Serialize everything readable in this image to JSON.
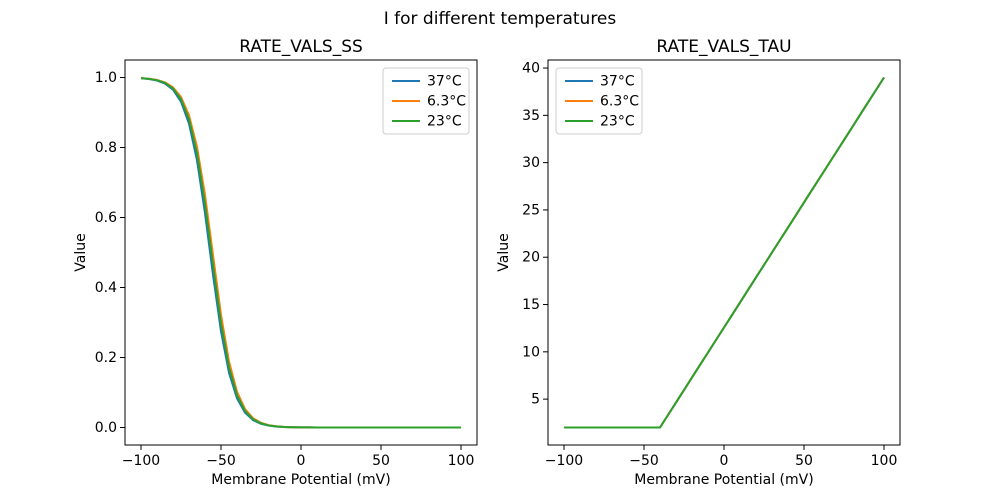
{
  "figure": {
    "suptitle": "I for different temperatures",
    "background": "#ffffff"
  },
  "legend_entries": [
    {
      "label": "37°C",
      "color": "#1f77b4"
    },
    {
      "label": "6.3°C",
      "color": "#ff7f0e"
    },
    {
      "label": "23°C",
      "color": "#2ca02c"
    }
  ],
  "chart_data": [
    {
      "type": "line",
      "title": "RATE_VALS_SS",
      "xlabel": "Membrane Potential (mV)",
      "ylabel": "Value",
      "xlim": [
        -110,
        110
      ],
      "ylim": [
        -0.05,
        1.05
      ],
      "grid": false,
      "legend_position": "upper-right",
      "xticks": [
        -100,
        -50,
        0,
        50,
        100
      ],
      "xtick_labels": [
        "−100",
        "−50",
        "0",
        "50",
        "100"
      ],
      "yticks": [
        0.0,
        0.2,
        0.4,
        0.6,
        0.8,
        1.0
      ],
      "ytick_labels": [
        "0.0",
        "0.2",
        "0.4",
        "0.6",
        "0.8",
        "1.0"
      ],
      "x": [
        -100,
        -95,
        -90,
        -85,
        -80,
        -75,
        -70,
        -65,
        -60,
        -55,
        -50,
        -45,
        -40,
        -35,
        -30,
        -25,
        -20,
        -15,
        -10,
        -5,
        0,
        5,
        10,
        15,
        20,
        25,
        30,
        35,
        40,
        45,
        50,
        55,
        60,
        65,
        70,
        75,
        80,
        85,
        90,
        95,
        100
      ],
      "series": [
        {
          "name": "37°C",
          "color": "#1f77b4",
          "values": [
            0.9979,
            0.9957,
            0.9914,
            0.9825,
            0.965,
            0.9309,
            0.8683,
            0.7634,
            0.6123,
            0.4361,
            0.2748,
            0.1563,
            0.0832,
            0.0425,
            0.0213,
            0.0105,
            0.0052,
            0.0025,
            0.0012,
            0.0006,
            0.0003,
            0.0002,
            0.0001,
            0,
            0,
            0,
            0,
            0,
            0,
            0,
            0,
            0,
            0,
            0,
            0,
            0,
            0,
            0,
            0,
            0,
            0
          ]
        },
        {
          "name": "6.3°C",
          "color": "#ff7f0e",
          "values": [
            0.9983,
            0.9966,
            0.9931,
            0.986,
            0.9719,
            0.9442,
            0.8923,
            0.8022,
            0.665,
            0.4929,
            0.3224,
            0.1889,
            0.1024,
            0.0529,
            0.0266,
            0.0132,
            0.0065,
            0.0032,
            0.0016,
            0.0008,
            0.0004,
            0.0002,
            0.0001,
            0,
            0,
            0,
            0,
            0,
            0,
            0,
            0,
            0,
            0,
            0,
            0,
            0,
            0,
            0,
            0,
            0,
            0
          ]
        },
        {
          "name": "23°C",
          "color": "#2ca02c",
          "values": [
            0.9981,
            0.9962,
            0.9923,
            0.9844,
            0.9687,
            0.9378,
            0.8808,
            0.7834,
            0.6391,
            0.4644,
            0.298,
            0.1721,
            0.0923,
            0.0474,
            0.0238,
            0.0118,
            0.0058,
            0.0028,
            0.0014,
            0.0007,
            0.0003,
            0.0002,
            0.0001,
            0,
            0,
            0,
            0,
            0,
            0,
            0,
            0,
            0,
            0,
            0,
            0,
            0,
            0,
            0,
            0,
            0,
            0
          ]
        }
      ]
    },
    {
      "type": "line",
      "title": "RATE_VALS_TAU",
      "xlabel": "Membrane Potential (mV)",
      "ylabel": "Value",
      "xlim": [
        -110,
        110
      ],
      "ylim": [
        0.15,
        40.85
      ],
      "grid": false,
      "legend_position": "upper-left",
      "xticks": [
        -100,
        -50,
        0,
        50,
        100
      ],
      "xtick_labels": [
        "−100",
        "−50",
        "0",
        "50",
        "100"
      ],
      "yticks": [
        5,
        10,
        15,
        20,
        25,
        30,
        35,
        40
      ],
      "ytick_labels": [
        "5",
        "10",
        "15",
        "20",
        "25",
        "30",
        "35",
        "40"
      ],
      "x": [
        -100,
        -95,
        -90,
        -85,
        -80,
        -75,
        -70,
        -65,
        -60,
        -55,
        -50,
        -45,
        -40,
        -35,
        -30,
        -25,
        -20,
        -15,
        -10,
        -5,
        0,
        5,
        10,
        15,
        20,
        25,
        30,
        35,
        40,
        45,
        50,
        55,
        60,
        65,
        70,
        75,
        80,
        85,
        90,
        95,
        100
      ],
      "series": [
        {
          "name": "37°C",
          "color": "#1f77b4",
          "values": [
            2,
            2,
            2,
            2,
            2,
            2,
            2,
            2,
            2,
            2,
            2,
            2,
            2,
            3.32,
            4.64,
            5.96,
            7.29,
            8.61,
            9.93,
            11.25,
            12.57,
            13.89,
            15.21,
            16.54,
            17.86,
            19.18,
            20.5,
            21.82,
            23.14,
            24.46,
            25.79,
            27.11,
            28.43,
            29.75,
            31.07,
            32.39,
            33.71,
            35.04,
            36.36,
            37.68,
            39
          ]
        },
        {
          "name": "6.3°C",
          "color": "#ff7f0e",
          "values": [
            2,
            2,
            2,
            2,
            2,
            2,
            2,
            2,
            2,
            2,
            2,
            2,
            2,
            3.32,
            4.64,
            5.96,
            7.29,
            8.61,
            9.93,
            11.25,
            12.57,
            13.89,
            15.21,
            16.54,
            17.86,
            19.18,
            20.5,
            21.82,
            23.14,
            24.46,
            25.79,
            27.11,
            28.43,
            29.75,
            31.07,
            32.39,
            33.71,
            35.04,
            36.36,
            37.68,
            39
          ]
        },
        {
          "name": "23°C",
          "color": "#2ca02c",
          "values": [
            2,
            2,
            2,
            2,
            2,
            2,
            2,
            2,
            2,
            2,
            2,
            2,
            2,
            3.32,
            4.64,
            5.96,
            7.29,
            8.61,
            9.93,
            11.25,
            12.57,
            13.89,
            15.21,
            16.54,
            17.86,
            19.18,
            20.5,
            21.82,
            23.14,
            24.46,
            25.79,
            27.11,
            28.43,
            29.75,
            31.07,
            32.39,
            33.71,
            35.04,
            36.36,
            37.68,
            39
          ]
        }
      ]
    }
  ]
}
